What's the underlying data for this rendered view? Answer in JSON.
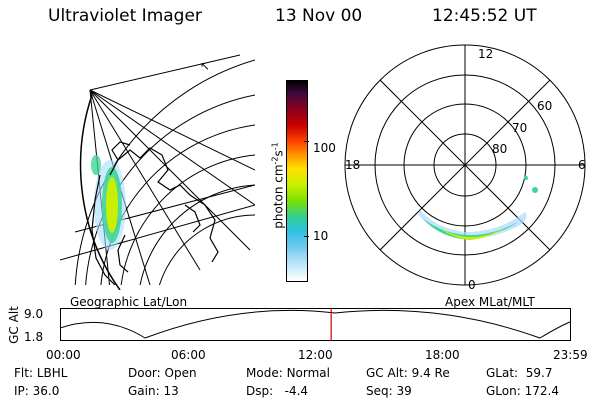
{
  "header": {
    "instrument": "Ultraviolet Imager",
    "date": "13 Nov 00",
    "time": "12:45:52 UT"
  },
  "colorbar": {
    "unit_label": "photon cm",
    "unit_exp1": "-2",
    "unit_mid": "s",
    "unit_exp2": "-1",
    "tick_100": "100",
    "tick_10": "10"
  },
  "geo_panel": {
    "title": "Geographic Lat/Lon"
  },
  "polar_panel": {
    "title": "Apex MLat/MLT",
    "labels": {
      "top": "12",
      "left": "18",
      "right": "6",
      "bottom": "0"
    },
    "rings": [
      "60",
      "70",
      "80"
    ]
  },
  "timeline": {
    "ylabel": "GC Alt",
    "ymax": "9.0",
    "ymin": "1.8",
    "ticks": [
      "00:00",
      "06:00",
      "12:00",
      "18:00",
      "23:59"
    ],
    "current_marker_hour": 12.76
  },
  "info": {
    "filter_label": "Flt:",
    "filter_value": "LBHL",
    "ip_label": "IP:",
    "ip_value": "36.0",
    "door_label": "Door:",
    "door_value": "Open",
    "gain_label": "Gain:",
    "gain_value": "13",
    "mode_label": "Mode:",
    "mode_value": "Normal",
    "dsp_label": "Dsp:",
    "dsp_value": "-4.4",
    "gcalt_label": "GC Alt:",
    "gcalt_value": "9.4 Re",
    "seq_label": "Seq:",
    "seq_value": "39",
    "glat_label": "GLat:",
    "glat_value": "59.7",
    "glon_label": "GLon:",
    "glon_value": "172.4"
  }
}
